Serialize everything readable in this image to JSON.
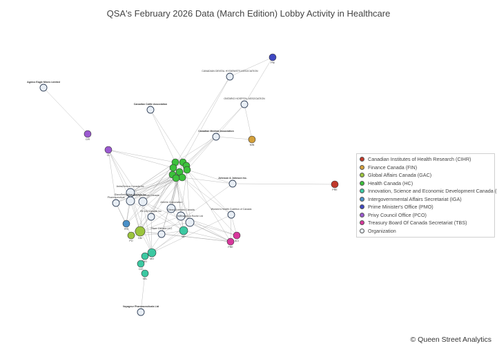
{
  "title": "QSA's February 2026 Data (March Edition) Lobby Activity in Healthcare",
  "credit": "© Queen Street Analytics",
  "colors": {
    "CIHR": "#c0392b",
    "FIN": "#d4a03a",
    "GAC": "#9bc53d",
    "HC": "#3cc13b",
    "ISED": "#3cc9a2",
    "IGA": "#4a90c8",
    "PMO": "#3f48c2",
    "PCO": "#9b59d0",
    "TBS": "#d8379c",
    "Organization": "#e8eef5"
  },
  "legend": [
    {
      "key": "CIHR",
      "label": "Canadian Institutes of Health Research (CIHR)"
    },
    {
      "key": "FIN",
      "label": "Finance Canada (FIN)"
    },
    {
      "key": "GAC",
      "label": "Global Affairs Canada (GAC)"
    },
    {
      "key": "HC",
      "label": "Health Canada (HC)"
    },
    {
      "key": "ISED",
      "label": "Innovation, Science and Economic Development Canada (ISED)"
    },
    {
      "key": "IGA",
      "label": "Intergovernmental Affairs Secretariat (IGA)"
    },
    {
      "key": "PMO",
      "label": "Prime Minister's Office (PMO)"
    },
    {
      "key": "PCO",
      "label": "Privy Council Office (PCO)"
    },
    {
      "key": "TBS",
      "label": "Treasury Board Of Canada Secretariat (TBS)"
    },
    {
      "key": "Organization",
      "label": "Organization"
    }
  ],
  "nodes": [
    {
      "id": "agnico",
      "label": "Agnico Eagle Mines Limited",
      "type": "Organization"
    },
    {
      "id": "cattle",
      "label": "Canadian Cattle Association",
      "type": "Organization"
    },
    {
      "id": "cda",
      "label": "CANADIAN DENTAL HYGIENISTS ASSOCIATION",
      "type": "Organization"
    },
    {
      "id": "oha",
      "label": "ONTARIO HOSPITAL ASSOCIATION",
      "type": "Organization"
    },
    {
      "id": "cma",
      "label": "Canadian Medical Association",
      "type": "Organization"
    },
    {
      "id": "jnj",
      "label": "Johnson & Johnson Inc.",
      "type": "Organization"
    },
    {
      "id": "astra",
      "label": "AstraZeneca Canada Inc.",
      "type": "Organization"
    },
    {
      "id": "pharma",
      "label": "Pharmaceutical",
      "type": "Organization"
    },
    {
      "id": "glaxo",
      "label": "GlaxoSmithKline Canada Inc.",
      "type": "Organization"
    },
    {
      "id": "imc",
      "label": "Innovative Medicines Canada",
      "type": "Organization"
    },
    {
      "id": "abbvie",
      "label": "AbbVie Corporation",
      "type": "Organization"
    },
    {
      "id": "lilly",
      "label": "Eli Lilly Canada Inc.",
      "type": "Organization"
    },
    {
      "id": "gilead",
      "label": "Gilead Sciences Canada",
      "type": "Organization"
    },
    {
      "id": "roche",
      "label": "Hoffmann-La Roche Ltd",
      "type": "Organization"
    },
    {
      "id": "pfizer",
      "label": "Pfizer Canada ULC",
      "type": "Organization"
    },
    {
      "id": "fhc",
      "label": "Women's Health Coalition of Canada",
      "type": "Organization"
    },
    {
      "id": "voyageur",
      "label": "Voyageur Pharmaceuticals Ltd",
      "type": "Organization"
    },
    {
      "id": "pmo1",
      "label": "PM",
      "type": "PMO"
    },
    {
      "id": "pco1",
      "label": "CIR",
      "type": "PCO"
    },
    {
      "id": "pco2",
      "label": "CL",
      "type": "PCO"
    },
    {
      "id": "fin1",
      "label": "MIN",
      "type": "FIN"
    },
    {
      "id": "cihr1",
      "label": "PRE",
      "type": "CIHR"
    },
    {
      "id": "hc1",
      "label": "",
      "type": "HC"
    },
    {
      "id": "hc2",
      "label": "",
      "type": "HC"
    },
    {
      "id": "hc3",
      "label": "",
      "type": "HC"
    },
    {
      "id": "hc4",
      "label": "",
      "type": "HC"
    },
    {
      "id": "hc5",
      "label": "",
      "type": "HC"
    },
    {
      "id": "hc6",
      "label": "",
      "type": "HC"
    },
    {
      "id": "hc7",
      "label": "",
      "type": "HC"
    },
    {
      "id": "hc8",
      "label": "",
      "type": "HC"
    },
    {
      "id": "hc9",
      "label": "",
      "type": "HC"
    },
    {
      "id": "iga1",
      "label": "PRI",
      "type": "IGA"
    },
    {
      "id": "gac1",
      "label": "DM",
      "type": "GAC"
    },
    {
      "id": "gac2",
      "label": "PO",
      "type": "GAC"
    },
    {
      "id": "ised1",
      "label": "MO",
      "type": "ISED"
    },
    {
      "id": "ised2",
      "label": "MP",
      "type": "ISED"
    },
    {
      "id": "ised3",
      "label": "MO",
      "type": "ISED"
    },
    {
      "id": "ised4",
      "label": "DG",
      "type": "ISED"
    },
    {
      "id": "ised5",
      "label": "SEL",
      "type": "ISED"
    },
    {
      "id": "tbs1",
      "label": "PRE",
      "type": "TBS"
    },
    {
      "id": "tbs2",
      "label": "ACI",
      "type": "TBS"
    }
  ],
  "edges": [
    [
      "agnico",
      "pco1"
    ],
    [
      "cattle",
      "hc1"
    ],
    [
      "cattle",
      "hc3"
    ],
    [
      "cda",
      "pmo1"
    ],
    [
      "cda",
      "hc2"
    ],
    [
      "cda",
      "hc4"
    ],
    [
      "oha",
      "pmo1"
    ],
    [
      "oha",
      "fin1"
    ],
    [
      "oha",
      "hc5"
    ],
    [
      "oha",
      "hc6"
    ],
    [
      "cma",
      "fin1"
    ],
    [
      "cma",
      "hc1"
    ],
    [
      "cma",
      "hc3"
    ],
    [
      "cma",
      "hc7"
    ],
    [
      "jnj",
      "cihr1"
    ],
    [
      "jnj",
      "hc5"
    ],
    [
      "jnj",
      "hc8"
    ],
    [
      "jnj",
      "pfizer"
    ],
    [
      "pco2",
      "hc1"
    ],
    [
      "pco2",
      "hc4"
    ],
    [
      "pco2",
      "astra"
    ],
    [
      "pco2",
      "glaxo"
    ],
    [
      "pco2",
      "imc"
    ],
    [
      "pco2",
      "pharma"
    ],
    [
      "astra",
      "hc1"
    ],
    [
      "astra",
      "hc2"
    ],
    [
      "astra",
      "hc5"
    ],
    [
      "astra",
      "hc8"
    ],
    [
      "astra",
      "hc9"
    ],
    [
      "astra",
      "gac1"
    ],
    [
      "astra",
      "ised1"
    ],
    [
      "astra",
      "iga1"
    ],
    [
      "pharma",
      "hc1"
    ],
    [
      "pharma",
      "hc5"
    ],
    [
      "pharma",
      "hc9"
    ],
    [
      "pharma",
      "iga1"
    ],
    [
      "pharma",
      "gac2"
    ],
    [
      "glaxo",
      "hc2"
    ],
    [
      "glaxo",
      "hc6"
    ],
    [
      "glaxo",
      "hc8"
    ],
    [
      "glaxo",
      "gac1"
    ],
    [
      "glaxo",
      "ised2"
    ],
    [
      "glaxo",
      "iga1"
    ],
    [
      "imc",
      "hc1"
    ],
    [
      "imc",
      "hc3"
    ],
    [
      "imc",
      "hc5"
    ],
    [
      "imc",
      "hc7"
    ],
    [
      "imc",
      "hc9"
    ],
    [
      "imc",
      "gac1"
    ],
    [
      "imc",
      "ised1"
    ],
    [
      "imc",
      "ised2"
    ],
    [
      "imc",
      "tbs1"
    ],
    [
      "abbvie",
      "hc2"
    ],
    [
      "abbvie",
      "hc6"
    ],
    [
      "abbvie",
      "hc9"
    ],
    [
      "abbvie",
      "gac1"
    ],
    [
      "abbvie",
      "ised2"
    ],
    [
      "abbvie",
      "tbs1"
    ],
    [
      "lilly",
      "hc4"
    ],
    [
      "lilly",
      "hc8"
    ],
    [
      "lilly",
      "gac2"
    ],
    [
      "lilly",
      "ised1"
    ],
    [
      "gilead",
      "hc1"
    ],
    [
      "gilead",
      "hc5"
    ],
    [
      "gilead",
      "gac1"
    ],
    [
      "gilead",
      "ised2"
    ],
    [
      "gilead",
      "tbs2"
    ],
    [
      "roche",
      "hc3"
    ],
    [
      "roche",
      "hc7"
    ],
    [
      "roche",
      "hc9"
    ],
    [
      "roche",
      "gac1"
    ],
    [
      "roche",
      "ised1"
    ],
    [
      "roche",
      "tbs1"
    ],
    [
      "roche",
      "tbs2"
    ],
    [
      "pfizer",
      "hc2"
    ],
    [
      "pfizer",
      "hc6"
    ],
    [
      "pfizer",
      "gac1"
    ],
    [
      "pfizer",
      "gac2"
    ],
    [
      "pfizer",
      "ised2"
    ],
    [
      "pfizer",
      "ised4"
    ],
    [
      "pfizer",
      "tbs1"
    ],
    [
      "fhc",
      "hc5"
    ],
    [
      "fhc",
      "hc8"
    ],
    [
      "fhc",
      "tbs1"
    ],
    [
      "fhc",
      "tbs2"
    ],
    [
      "fhc",
      "ised1"
    ],
    [
      "iga1",
      "hc1"
    ],
    [
      "iga1",
      "hc5"
    ],
    [
      "gac1",
      "hc2"
    ],
    [
      "gac1",
      "hc7"
    ],
    [
      "gac2",
      "hc6"
    ],
    [
      "ised1",
      "ised3"
    ],
    [
      "ised2",
      "ised3"
    ],
    [
      "ised3",
      "ised4"
    ],
    [
      "ised4",
      "ised5"
    ],
    [
      "ised5",
      "voyageur"
    ],
    [
      "ised1",
      "gac1"
    ],
    [
      "ised2",
      "hc9"
    ],
    [
      "tbs1",
      "hc5"
    ],
    [
      "tbs2",
      "hc8"
    ],
    [
      "tbs1",
      "gac1"
    ],
    [
      "tbs1",
      "ised2"
    ]
  ]
}
